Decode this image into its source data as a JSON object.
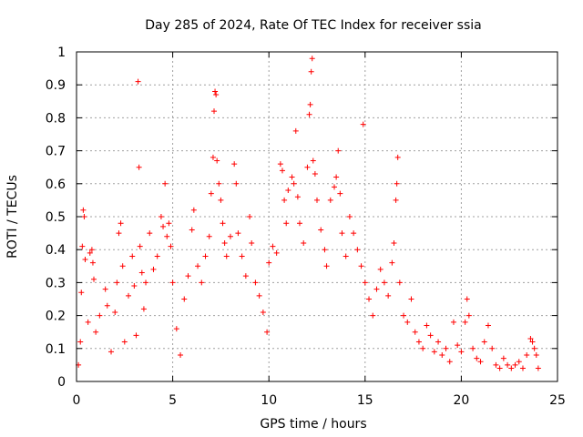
{
  "chart_data": {
    "type": "scatter",
    "title": "Day 285 of 2024, Rate Of TEC Index for receiver ssia",
    "xlabel": "GPS time / hours",
    "ylabel": "ROTI / TECUs",
    "xlim": [
      0,
      25
    ],
    "ylim": [
      0,
      1
    ],
    "xticks": [
      0,
      5,
      10,
      15,
      20,
      25
    ],
    "yticks": [
      0,
      0.1,
      0.2,
      0.3,
      0.4,
      0.5,
      0.6,
      0.7,
      0.8,
      0.9,
      1
    ],
    "xtick_labels": [
      "0",
      "5",
      "10",
      "15",
      "20",
      "25"
    ],
    "ytick_labels": [
      "0",
      "0.1",
      "0.2",
      "0.3",
      "0.4",
      "0.5",
      "0.6",
      "0.7",
      "0.8",
      "0.9",
      "1"
    ],
    "grid": true,
    "marker": "+",
    "color": "#ff0000",
    "series": [
      {
        "points": [
          [
            0.1,
            0.05
          ],
          [
            0.2,
            0.12
          ],
          [
            0.25,
            0.27
          ],
          [
            0.3,
            0.41
          ],
          [
            0.35,
            0.52
          ],
          [
            0.4,
            0.5
          ],
          [
            0.45,
            0.37
          ],
          [
            0.6,
            0.18
          ],
          [
            0.7,
            0.39
          ],
          [
            0.8,
            0.4
          ],
          [
            0.85,
            0.36
          ],
          [
            0.9,
            0.31
          ],
          [
            1.0,
            0.15
          ],
          [
            1.2,
            0.2
          ],
          [
            1.5,
            0.28
          ],
          [
            1.6,
            0.23
          ],
          [
            1.8,
            0.09
          ],
          [
            2.0,
            0.21
          ],
          [
            2.1,
            0.3
          ],
          [
            2.2,
            0.45
          ],
          [
            2.3,
            0.48
          ],
          [
            2.4,
            0.35
          ],
          [
            2.5,
            0.12
          ],
          [
            2.7,
            0.26
          ],
          [
            2.9,
            0.38
          ],
          [
            3.0,
            0.29
          ],
          [
            3.1,
            0.14
          ],
          [
            3.2,
            0.91
          ],
          [
            3.25,
            0.65
          ],
          [
            3.3,
            0.41
          ],
          [
            3.4,
            0.33
          ],
          [
            3.5,
            0.22
          ],
          [
            3.6,
            0.3
          ],
          [
            3.8,
            0.45
          ],
          [
            4.0,
            0.34
          ],
          [
            4.2,
            0.38
          ],
          [
            4.4,
            0.5
          ],
          [
            4.5,
            0.47
          ],
          [
            4.6,
            0.6
          ],
          [
            4.7,
            0.44
          ],
          [
            4.8,
            0.48
          ],
          [
            4.9,
            0.41
          ],
          [
            5.0,
            0.3
          ],
          [
            5.2,
            0.16
          ],
          [
            5.4,
            0.08
          ],
          [
            5.6,
            0.25
          ],
          [
            5.8,
            0.32
          ],
          [
            6.0,
            0.46
          ],
          [
            6.1,
            0.52
          ],
          [
            6.3,
            0.35
          ],
          [
            6.5,
            0.3
          ],
          [
            6.7,
            0.38
          ],
          [
            6.9,
            0.44
          ],
          [
            7.0,
            0.57
          ],
          [
            7.1,
            0.68
          ],
          [
            7.15,
            0.82
          ],
          [
            7.2,
            0.88
          ],
          [
            7.25,
            0.87
          ],
          [
            7.3,
            0.67
          ],
          [
            7.4,
            0.6
          ],
          [
            7.5,
            0.55
          ],
          [
            7.6,
            0.48
          ],
          [
            7.7,
            0.42
          ],
          [
            7.8,
            0.38
          ],
          [
            8.0,
            0.44
          ],
          [
            8.2,
            0.66
          ],
          [
            8.3,
            0.6
          ],
          [
            8.4,
            0.45
          ],
          [
            8.6,
            0.38
          ],
          [
            8.8,
            0.32
          ],
          [
            9.0,
            0.5
          ],
          [
            9.1,
            0.42
          ],
          [
            9.3,
            0.3
          ],
          [
            9.5,
            0.26
          ],
          [
            9.7,
            0.21
          ],
          [
            9.9,
            0.15
          ],
          [
            10.0,
            0.36
          ],
          [
            10.2,
            0.41
          ],
          [
            10.4,
            0.39
          ],
          [
            10.6,
            0.66
          ],
          [
            10.7,
            0.64
          ],
          [
            10.8,
            0.55
          ],
          [
            10.9,
            0.48
          ],
          [
            11.0,
            0.58
          ],
          [
            11.2,
            0.62
          ],
          [
            11.3,
            0.6
          ],
          [
            11.4,
            0.76
          ],
          [
            11.5,
            0.56
          ],
          [
            11.6,
            0.48
          ],
          [
            11.8,
            0.42
          ],
          [
            12.0,
            0.65
          ],
          [
            12.1,
            0.81
          ],
          [
            12.15,
            0.84
          ],
          [
            12.2,
            0.94
          ],
          [
            12.25,
            0.98
          ],
          [
            12.3,
            0.67
          ],
          [
            12.4,
            0.63
          ],
          [
            12.5,
            0.55
          ],
          [
            12.7,
            0.46
          ],
          [
            12.9,
            0.4
          ],
          [
            13.0,
            0.35
          ],
          [
            13.2,
            0.55
          ],
          [
            13.4,
            0.59
          ],
          [
            13.5,
            0.62
          ],
          [
            13.6,
            0.7
          ],
          [
            13.7,
            0.57
          ],
          [
            13.8,
            0.45
          ],
          [
            14.0,
            0.38
          ],
          [
            14.2,
            0.5
          ],
          [
            14.4,
            0.45
          ],
          [
            14.6,
            0.4
          ],
          [
            14.8,
            0.35
          ],
          [
            14.9,
            0.78
          ],
          [
            15.0,
            0.3
          ],
          [
            15.2,
            0.25
          ],
          [
            15.4,
            0.2
          ],
          [
            15.6,
            0.28
          ],
          [
            15.8,
            0.34
          ],
          [
            16.0,
            0.3
          ],
          [
            16.2,
            0.26
          ],
          [
            16.4,
            0.36
          ],
          [
            16.5,
            0.42
          ],
          [
            16.6,
            0.55
          ],
          [
            16.65,
            0.6
          ],
          [
            16.7,
            0.68
          ],
          [
            16.8,
            0.3
          ],
          [
            17.0,
            0.2
          ],
          [
            17.2,
            0.18
          ],
          [
            17.4,
            0.25
          ],
          [
            17.6,
            0.15
          ],
          [
            17.8,
            0.12
          ],
          [
            18.0,
            0.1
          ],
          [
            18.2,
            0.17
          ],
          [
            18.4,
            0.14
          ],
          [
            18.6,
            0.09
          ],
          [
            18.8,
            0.12
          ],
          [
            19.0,
            0.08
          ],
          [
            19.2,
            0.1
          ],
          [
            19.4,
            0.06
          ],
          [
            19.6,
            0.18
          ],
          [
            19.8,
            0.11
          ],
          [
            20.0,
            0.09
          ],
          [
            20.2,
            0.18
          ],
          [
            20.3,
            0.25
          ],
          [
            20.4,
            0.2
          ],
          [
            20.6,
            0.1
          ],
          [
            20.8,
            0.07
          ],
          [
            21.0,
            0.06
          ],
          [
            21.2,
            0.12
          ],
          [
            21.4,
            0.17
          ],
          [
            21.6,
            0.1
          ],
          [
            21.8,
            0.05
          ],
          [
            22.0,
            0.04
          ],
          [
            22.2,
            0.07
          ],
          [
            22.4,
            0.05
          ],
          [
            22.6,
            0.04
          ],
          [
            22.8,
            0.05
          ],
          [
            23.0,
            0.06
          ],
          [
            23.2,
            0.04
          ],
          [
            23.4,
            0.08
          ],
          [
            23.6,
            0.13
          ],
          [
            23.7,
            0.12
          ],
          [
            23.8,
            0.1
          ],
          [
            23.9,
            0.08
          ],
          [
            24.0,
            0.04
          ]
        ]
      }
    ]
  }
}
